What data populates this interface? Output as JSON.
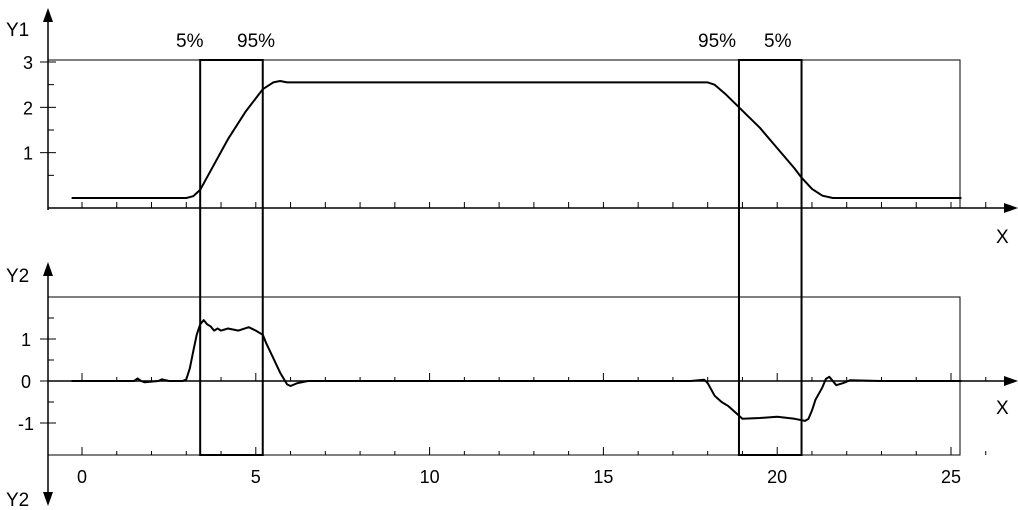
{
  "chart_data": [
    {
      "type": "line",
      "panel": "top",
      "ylabel": "Y1",
      "xlabel": "X",
      "xlim": [
        -0.5,
        26
      ],
      "ylim": [
        0,
        3
      ],
      "yticks": [
        1,
        2,
        3
      ],
      "grid": false,
      "window_labels": [
        "5%",
        "95%",
        "95%",
        "5%"
      ],
      "windows": [
        [
          3.4,
          5.2
        ],
        [
          18.9,
          20.7
        ]
      ],
      "series": [
        {
          "x": [
            -0.3,
            3.0,
            3.2,
            3.4,
            3.7,
            4.2,
            4.7,
            5.2,
            5.5,
            5.7,
            5.9,
            18.0,
            18.2,
            18.5,
            18.9,
            19.5,
            20.0,
            20.5,
            20.7,
            21.0,
            21.3,
            21.6,
            25.3
          ],
          "y": [
            0.0,
            0.0,
            0.04,
            0.18,
            0.6,
            1.3,
            1.9,
            2.4,
            2.55,
            2.58,
            2.55,
            2.55,
            2.5,
            2.3,
            2.0,
            1.55,
            1.1,
            0.65,
            0.45,
            0.2,
            0.05,
            0.0,
            0.0
          ]
        }
      ]
    },
    {
      "type": "line",
      "panel": "bottom",
      "ylabel": "Y2",
      "ylabel2": "Y2",
      "xlabel": "X",
      "xlim": [
        -0.5,
        26
      ],
      "ylim": [
        -1.8,
        2.0
      ],
      "yticks": [
        -1,
        0,
        1
      ],
      "xticks": [
        0,
        5,
        10,
        15,
        20,
        25
      ],
      "grid": false,
      "series": [
        {
          "x": [
            -0.3,
            1.5,
            1.6,
            1.7,
            1.8,
            2.2,
            2.3,
            2.5,
            2.9,
            3.0,
            3.1,
            3.2,
            3.3,
            3.4,
            3.5,
            3.6,
            3.7,
            3.8,
            3.9,
            4.0,
            4.2,
            4.5,
            4.8,
            5.0,
            5.2,
            5.3,
            5.5,
            5.7,
            5.9,
            6.0,
            6.2,
            6.5,
            7.0,
            8.0,
            10.0,
            12.0,
            14.0,
            16.0,
            17.5,
            17.9,
            18.0,
            18.2,
            18.4,
            18.6,
            18.8,
            19.0,
            19.5,
            20.0,
            20.5,
            20.8,
            20.9,
            21.0,
            21.1,
            21.3,
            21.4,
            21.5,
            21.7,
            21.9,
            22.1,
            23.0,
            24.0,
            25.3
          ],
          "y": [
            0.0,
            0.0,
            0.06,
            0.0,
            -0.03,
            0.0,
            0.04,
            0.0,
            0.0,
            0.04,
            0.3,
            0.7,
            1.1,
            1.35,
            1.45,
            1.35,
            1.3,
            1.2,
            1.25,
            1.2,
            1.25,
            1.2,
            1.28,
            1.2,
            1.1,
            0.9,
            0.55,
            0.2,
            -0.08,
            -0.12,
            -0.05,
            0.0,
            0.0,
            0.0,
            0.0,
            0.0,
            0.0,
            0.0,
            0.0,
            0.03,
            -0.05,
            -0.35,
            -0.5,
            -0.6,
            -0.75,
            -0.9,
            -0.88,
            -0.85,
            -0.9,
            -0.95,
            -0.9,
            -0.7,
            -0.45,
            -0.15,
            0.05,
            0.1,
            -0.1,
            -0.05,
            0.02,
            0.0,
            0.0,
            0.0
          ]
        }
      ]
    }
  ]
}
